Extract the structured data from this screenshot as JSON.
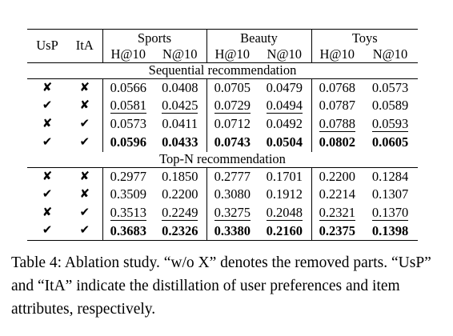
{
  "table": {
    "columns": {
      "usp": "UsP",
      "ita": "ItA",
      "groups": [
        "Sports",
        "Beauty",
        "Toys"
      ],
      "metrics": [
        "H@10",
        "N@10",
        "H@10",
        "N@10",
        "H@10",
        "N@10"
      ]
    },
    "sections": [
      {
        "title": "Sequential recommendation",
        "rows": [
          {
            "usp": "✘",
            "ita": "✘",
            "values": [
              "0.0566",
              "0.0408",
              "0.0705",
              "0.0479",
              "0.0768",
              "0.0573"
            ],
            "bold": [
              false,
              false,
              false,
              false,
              false,
              false
            ],
            "underline": [
              false,
              false,
              false,
              false,
              false,
              false
            ]
          },
          {
            "usp": "✔",
            "ita": "✘",
            "values": [
              "0.0581",
              "0.0425",
              "0.0729",
              "0.0494",
              "0.0787",
              "0.0589"
            ],
            "bold": [
              false,
              false,
              false,
              false,
              false,
              false
            ],
            "underline": [
              true,
              true,
              true,
              true,
              false,
              false
            ]
          },
          {
            "usp": "✘",
            "ita": "✔",
            "values": [
              "0.0573",
              "0.0411",
              "0.0712",
              "0.0492",
              "0.0788",
              "0.0593"
            ],
            "bold": [
              false,
              false,
              false,
              false,
              false,
              false
            ],
            "underline": [
              false,
              false,
              false,
              false,
              true,
              true
            ]
          },
          {
            "usp": "✔",
            "ita": "✔",
            "values": [
              "0.0596",
              "0.0433",
              "0.0743",
              "0.0504",
              "0.0802",
              "0.0605"
            ],
            "bold": [
              true,
              true,
              true,
              true,
              true,
              true
            ],
            "underline": [
              false,
              false,
              false,
              false,
              false,
              false
            ]
          }
        ]
      },
      {
        "title": "Top-N recommendation",
        "rows": [
          {
            "usp": "✘",
            "ita": "✘",
            "values": [
              "0.2977",
              "0.1850",
              "0.2777",
              "0.1701",
              "0.2200",
              "0.1284"
            ],
            "bold": [
              false,
              false,
              false,
              false,
              false,
              false
            ],
            "underline": [
              false,
              false,
              false,
              false,
              false,
              false
            ]
          },
          {
            "usp": "✔",
            "ita": "✘",
            "values": [
              "0.3509",
              "0.2200",
              "0.3080",
              "0.1912",
              "0.2214",
              "0.1307"
            ],
            "bold": [
              false,
              false,
              false,
              false,
              false,
              false
            ],
            "underline": [
              false,
              false,
              false,
              false,
              false,
              false
            ]
          },
          {
            "usp": "✘",
            "ita": "✔",
            "values": [
              "0.3513",
              "0.2249",
              "0.3275",
              "0.2048",
              "0.2321",
              "0.1370"
            ],
            "bold": [
              false,
              false,
              false,
              false,
              false,
              false
            ],
            "underline": [
              true,
              true,
              true,
              true,
              true,
              true
            ]
          },
          {
            "usp": "✔",
            "ita": "✔",
            "values": [
              "0.3683",
              "0.2326",
              "0.3380",
              "0.2160",
              "0.2375",
              "0.1398"
            ],
            "bold": [
              true,
              true,
              true,
              true,
              true,
              true
            ],
            "underline": [
              false,
              false,
              false,
              false,
              false,
              false
            ]
          }
        ]
      }
    ]
  },
  "caption": "Table 4:  Ablation study. “w/o X” denotes the removed parts. “UsP” and “ItA” indicate the distillation of user preferences and item attributes, respectively."
}
